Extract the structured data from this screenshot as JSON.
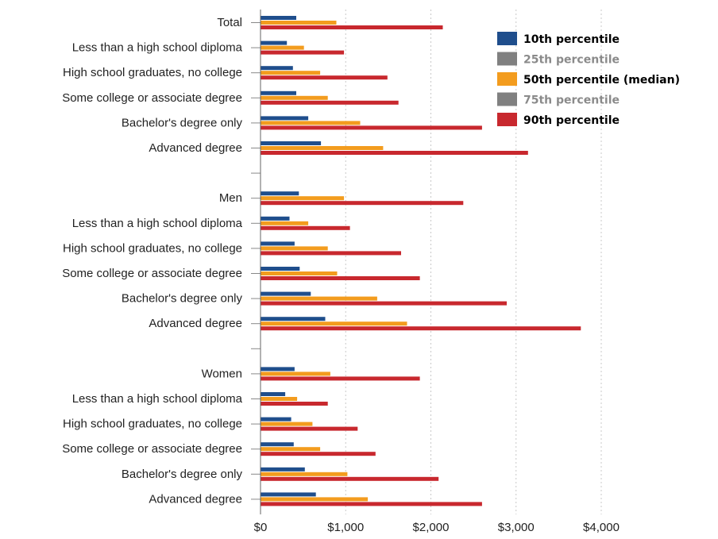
{
  "chart_data": {
    "type": "bar",
    "orientation": "horizontal",
    "categories": [
      "Total",
      "Less than a high school diploma",
      "High school graduates, no college",
      "Some college or associate degree",
      "Bachelor's degree only",
      "Advanced degree",
      "",
      "Men",
      "Less than a high school diploma",
      "High school graduates, no college",
      "Some college or associate degree",
      "Bachelor's degree only",
      "Advanced degree",
      "",
      "Women",
      "Less than a high school diploma",
      "High school graduates, no college",
      "Some college or associate degree",
      "Bachelor's degree only",
      "Advanced degree"
    ],
    "series": [
      {
        "name": "10th percentile",
        "color": "#1f4e8c",
        "legend_text_color": "#000000",
        "values": [
          420,
          310,
          380,
          420,
          560,
          710,
          null,
          450,
          340,
          400,
          460,
          590,
          760,
          null,
          400,
          290,
          360,
          390,
          520,
          650
        ]
      },
      {
        "name": "25th percentile",
        "color": "#808080",
        "legend_text_color": "#8a8a8a",
        "values": [
          null,
          null,
          null,
          null,
          null,
          null,
          null,
          null,
          null,
          null,
          null,
          null,
          null,
          null,
          null,
          null,
          null,
          null,
          null,
          null
        ]
      },
      {
        "name": "50th percentile (median)",
        "color": "#f39c1e",
        "legend_text_color": "#000000",
        "values": [
          890,
          510,
          700,
          790,
          1170,
          1440,
          null,
          980,
          560,
          790,
          900,
          1370,
          1720,
          null,
          820,
          430,
          610,
          700,
          1020,
          1260
        ]
      },
      {
        "name": "75th percentile",
        "color": "#808080",
        "legend_text_color": "#8a8a8a",
        "values": [
          null,
          null,
          null,
          null,
          null,
          null,
          null,
          null,
          null,
          null,
          null,
          null,
          null,
          null,
          null,
          null,
          null,
          null,
          null,
          null
        ]
      },
      {
        "name": "90th percentile",
        "color": "#c8282e",
        "legend_text_color": "#000000",
        "values": [
          2140,
          980,
          1490,
          1620,
          2600,
          3140,
          null,
          2380,
          1050,
          1650,
          1870,
          2890,
          3760,
          null,
          1870,
          790,
          1140,
          1350,
          2090,
          2600
        ]
      }
    ],
    "xticks": [
      "$0",
      "$1,000",
      "$2,000",
      "$3,000",
      "$4,000"
    ],
    "xtick_values": [
      0,
      1000,
      2000,
      3000,
      4000
    ],
    "xlim": [
      0,
      4000
    ],
    "grid": "vertical dotted",
    "legend_position": "top-right",
    "title": "",
    "xlabel": "",
    "ylabel": ""
  }
}
